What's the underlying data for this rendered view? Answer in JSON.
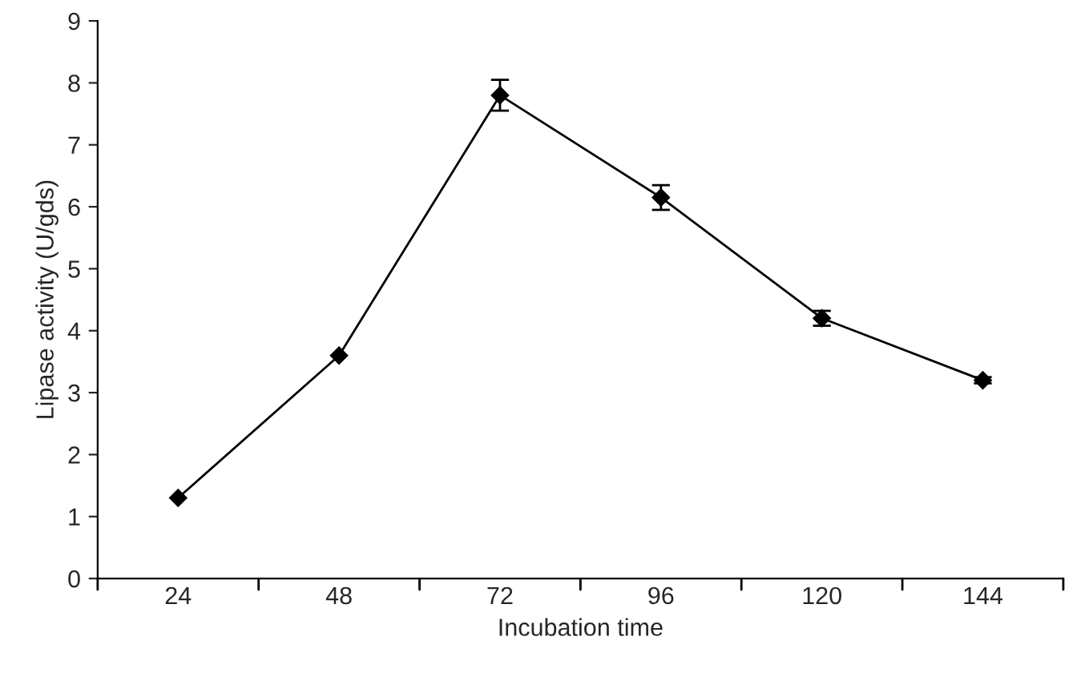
{
  "chart_data": {
    "type": "line",
    "xlabel": "Incubation time",
    "ylabel": "Lipase activity (U/gds)",
    "categories": [
      "24",
      "48",
      "72",
      "96",
      "120",
      "144"
    ],
    "series": [
      {
        "color": "#000000",
        "values": [
          1.3,
          3.6,
          7.8,
          6.15,
          4.2,
          3.2
        ],
        "errors": [
          null,
          null,
          0.25,
          0.2,
          0.12,
          0.05
        ]
      }
    ],
    "ylim": [
      0,
      9
    ],
    "yticks": [
      0,
      1,
      2,
      3,
      4,
      5,
      6,
      7,
      8,
      9
    ],
    "grid": false,
    "marker": "diamond",
    "line_style": "solid"
  }
}
